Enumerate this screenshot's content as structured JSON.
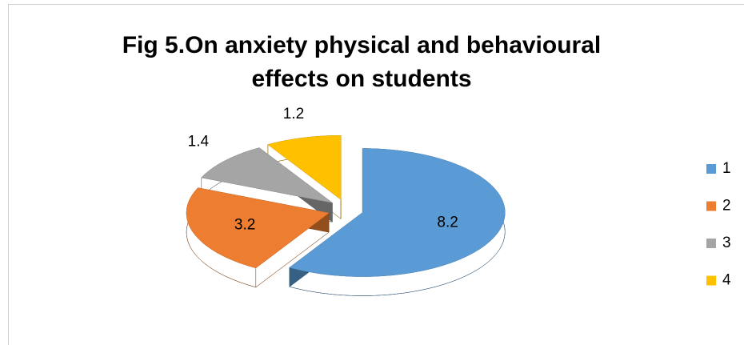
{
  "chart_data": {
    "type": "pie3d",
    "title": [
      "Fig 5.On anxiety physical and behavioural",
      "effects on students"
    ],
    "categories": [
      "1",
      "2",
      "3",
      "4"
    ],
    "values": [
      8.2,
      3.2,
      1.4,
      1.2
    ],
    "colors": [
      "#5b9bd5",
      "#ed7d31",
      "#a5a5a5",
      "#ffc000"
    ],
    "legend": "right"
  }
}
